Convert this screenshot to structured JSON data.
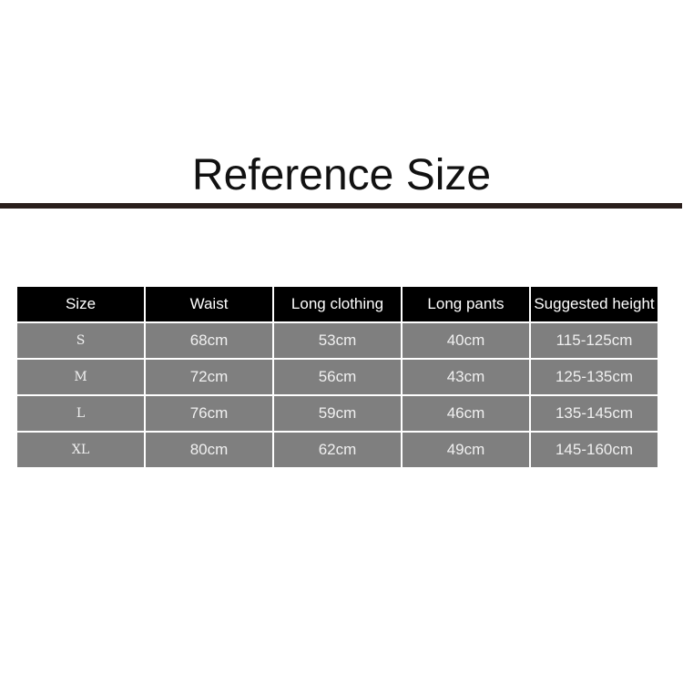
{
  "title": "Reference Size",
  "table": {
    "headers": [
      "Size",
      "Waist",
      "Long clothing",
      "Long pants",
      "Suggested height"
    ],
    "rows": [
      [
        "S",
        "68cm",
        "53cm",
        "40cm",
        "115-125cm"
      ],
      [
        "M",
        "72cm",
        "56cm",
        "43cm",
        "125-135cm"
      ],
      [
        "L",
        "76cm",
        "59cm",
        "46cm",
        "135-145cm"
      ],
      [
        "XL",
        "80cm",
        "62cm",
        "49cm",
        "145-160cm"
      ]
    ]
  },
  "colors": {
    "header_bg": "#000000",
    "cell_bg": "#7f7f7f",
    "rule": "#2a1f1c"
  }
}
